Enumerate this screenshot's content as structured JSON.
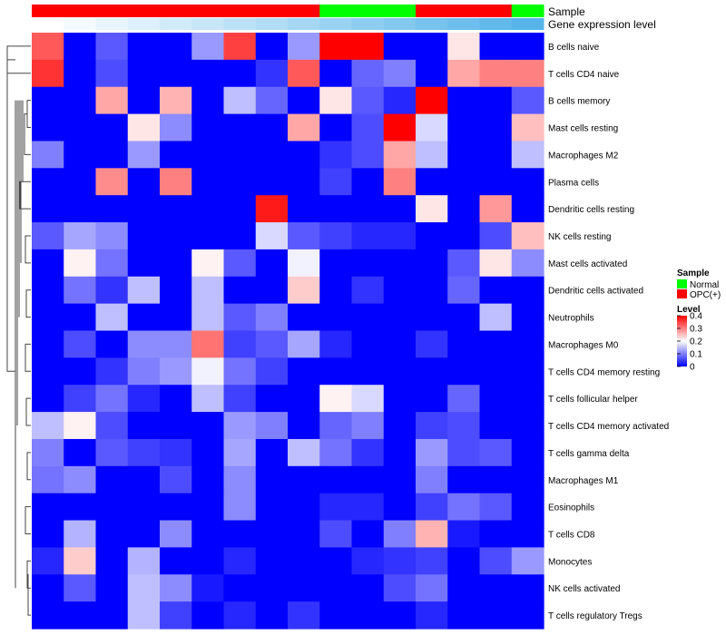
{
  "chart_data": {
    "type": "heatmap",
    "title": "",
    "annotation_labels": [
      "Sample",
      "Gene expression level"
    ],
    "sample_groups": [
      "OPC(+)",
      "OPC(+)",
      "OPC(+)",
      "OPC(+)",
      "OPC(+)",
      "OPC(+)",
      "OPC(+)",
      "OPC(+)",
      "OPC(+)",
      "Normal",
      "Normal",
      "Normal",
      "OPC(+)",
      "OPC(+)",
      "OPC(+)",
      "Normal"
    ],
    "expression_levels": [
      0.0,
      0.02,
      0.04,
      0.06,
      0.08,
      0.1,
      0.12,
      0.14,
      0.16,
      0.18,
      0.2,
      0.22,
      0.24,
      0.26,
      0.28,
      0.3
    ],
    "rows": [
      "B cells naive",
      "T cells CD4 naive",
      "B cells memory",
      "Mast cells resting",
      "Macrophages M2",
      "Plasma cells",
      "Dendritic cells resting",
      "NK cells resting",
      "Mast cells activated",
      "Dendritic cells activated",
      "Neutrophils",
      "Macrophages M0",
      "T cells CD4 memory resting",
      "T cells follicular helper",
      "T cells CD4 memory activated",
      "T cells gamma delta",
      "Macrophages M1",
      "Eosinophils",
      "T cells CD8",
      "Monocytes",
      "NK cells activated",
      "T cells regulatory  Tregs"
    ],
    "values": [
      [
        0.33,
        0.0,
        0.07,
        0.0,
        0.0,
        0.12,
        0.35,
        0.0,
        0.12,
        0.4,
        0.4,
        0.0,
        0.0,
        0.22,
        0.0,
        0.0
      ],
      [
        0.36,
        0.0,
        0.06,
        0.0,
        0.0,
        0.0,
        0.0,
        0.04,
        0.33,
        0.0,
        0.08,
        0.1,
        0.0,
        0.27,
        0.3,
        0.3
      ],
      [
        0.0,
        0.0,
        0.27,
        0.0,
        0.26,
        0.0,
        0.15,
        0.08,
        0.0,
        0.22,
        0.07,
        0.03,
        0.4,
        0.0,
        0.0,
        0.07
      ],
      [
        0.0,
        0.0,
        0.0,
        0.22,
        0.11,
        0.0,
        0.0,
        0.0,
        0.27,
        0.0,
        0.06,
        0.4,
        0.17,
        0.0,
        0.0,
        0.25
      ],
      [
        0.1,
        0.0,
        0.0,
        0.12,
        0.0,
        0.0,
        0.0,
        0.0,
        0.0,
        0.04,
        0.06,
        0.27,
        0.15,
        0.0,
        0.0,
        0.15
      ],
      [
        0.0,
        0.0,
        0.29,
        0.0,
        0.3,
        0.0,
        0.0,
        0.0,
        0.0,
        0.05,
        0.0,
        0.3,
        0.0,
        0.0,
        0.0,
        0.0
      ],
      [
        0.0,
        0.0,
        0.0,
        0.0,
        0.0,
        0.0,
        0.0,
        0.38,
        0.0,
        0.0,
        0.0,
        0.0,
        0.22,
        0.0,
        0.28,
        0.0
      ],
      [
        0.07,
        0.13,
        0.11,
        0.0,
        0.0,
        0.0,
        0.0,
        0.17,
        0.07,
        0.05,
        0.03,
        0.03,
        0.0,
        0.0,
        0.06,
        0.25
      ],
      [
        0.0,
        0.21,
        0.09,
        0.0,
        0.0,
        0.21,
        0.07,
        0.0,
        0.19,
        0.0,
        0.0,
        0.0,
        0.0,
        0.07,
        0.22,
        0.11
      ],
      [
        0.0,
        0.09,
        0.04,
        0.15,
        0.0,
        0.15,
        0.0,
        0.0,
        0.24,
        0.0,
        0.04,
        0.0,
        0.0,
        0.08,
        0.0,
        0.0
      ],
      [
        0.0,
        0.0,
        0.15,
        0.0,
        0.0,
        0.15,
        0.07,
        0.1,
        0.0,
        0.0,
        0.0,
        0.0,
        0.0,
        0.0,
        0.15,
        0.0
      ],
      [
        0.0,
        0.06,
        0.0,
        0.11,
        0.11,
        0.31,
        0.05,
        0.07,
        0.13,
        0.03,
        0.0,
        0.0,
        0.04,
        0.0,
        0.0,
        0.0
      ],
      [
        0.0,
        0.0,
        0.04,
        0.1,
        0.12,
        0.19,
        0.09,
        0.05,
        0.0,
        0.0,
        0.0,
        0.0,
        0.0,
        0.0,
        0.0,
        0.0
      ],
      [
        0.0,
        0.05,
        0.09,
        0.03,
        0.0,
        0.15,
        0.05,
        0.0,
        0.0,
        0.21,
        0.17,
        0.0,
        0.0,
        0.08,
        0.0,
        0.0
      ],
      [
        0.15,
        0.21,
        0.06,
        0.0,
        0.0,
        0.0,
        0.12,
        0.1,
        0.0,
        0.08,
        0.1,
        0.0,
        0.05,
        0.06,
        0.0,
        0.0
      ],
      [
        0.1,
        0.0,
        0.07,
        0.05,
        0.04,
        0.0,
        0.13,
        0.0,
        0.15,
        0.09,
        0.04,
        0.0,
        0.12,
        0.06,
        0.07,
        0.0
      ],
      [
        0.09,
        0.11,
        0.0,
        0.0,
        0.06,
        0.0,
        0.11,
        0.0,
        0.0,
        0.0,
        0.0,
        0.0,
        0.1,
        0.0,
        0.0,
        0.0
      ],
      [
        0.0,
        0.0,
        0.0,
        0.0,
        0.0,
        0.0,
        0.11,
        0.0,
        0.0,
        0.03,
        0.03,
        0.0,
        0.05,
        0.09,
        0.07,
        0.0
      ],
      [
        0.0,
        0.14,
        0.0,
        0.0,
        0.11,
        0.0,
        0.0,
        0.0,
        0.0,
        0.06,
        0.0,
        0.1,
        0.26,
        0.02,
        0.0,
        0.0
      ],
      [
        0.03,
        0.24,
        0.0,
        0.14,
        0.0,
        0.0,
        0.03,
        0.0,
        0.0,
        0.0,
        0.03,
        0.04,
        0.05,
        0.0,
        0.06,
        0.12
      ],
      [
        0.0,
        0.07,
        0.0,
        0.15,
        0.11,
        0.02,
        0.0,
        0.0,
        0.0,
        0.0,
        0.0,
        0.06,
        0.09,
        0.0,
        0.0,
        0.0
      ],
      [
        0.0,
        0.0,
        0.0,
        0.15,
        0.05,
        0.0,
        0.03,
        0.0,
        0.04,
        0.0,
        0.0,
        0.0,
        0.03,
        0.0,
        0.0,
        0.0
      ]
    ],
    "colorbar_ticks": [
      "0.4",
      "0.3",
      "0.2",
      "0.1",
      "0"
    ],
    "vmin": 0,
    "vmax": 0.4,
    "colors": {
      "low": "#0000ff",
      "mid": "#ffffff",
      "high": "#ff0000",
      "normal": "#00ff00",
      "opc": "#ff0000",
      "expr_low": "#ffffff",
      "expr_high": "#56b4e9"
    }
  },
  "legend": {
    "sample_title": "Sample",
    "sample_items": [
      {
        "label": "Normal",
        "color": "#00ff00"
      },
      {
        "label": "OPC(+)",
        "color": "#ff0000"
      }
    ],
    "level_title": "Level"
  }
}
